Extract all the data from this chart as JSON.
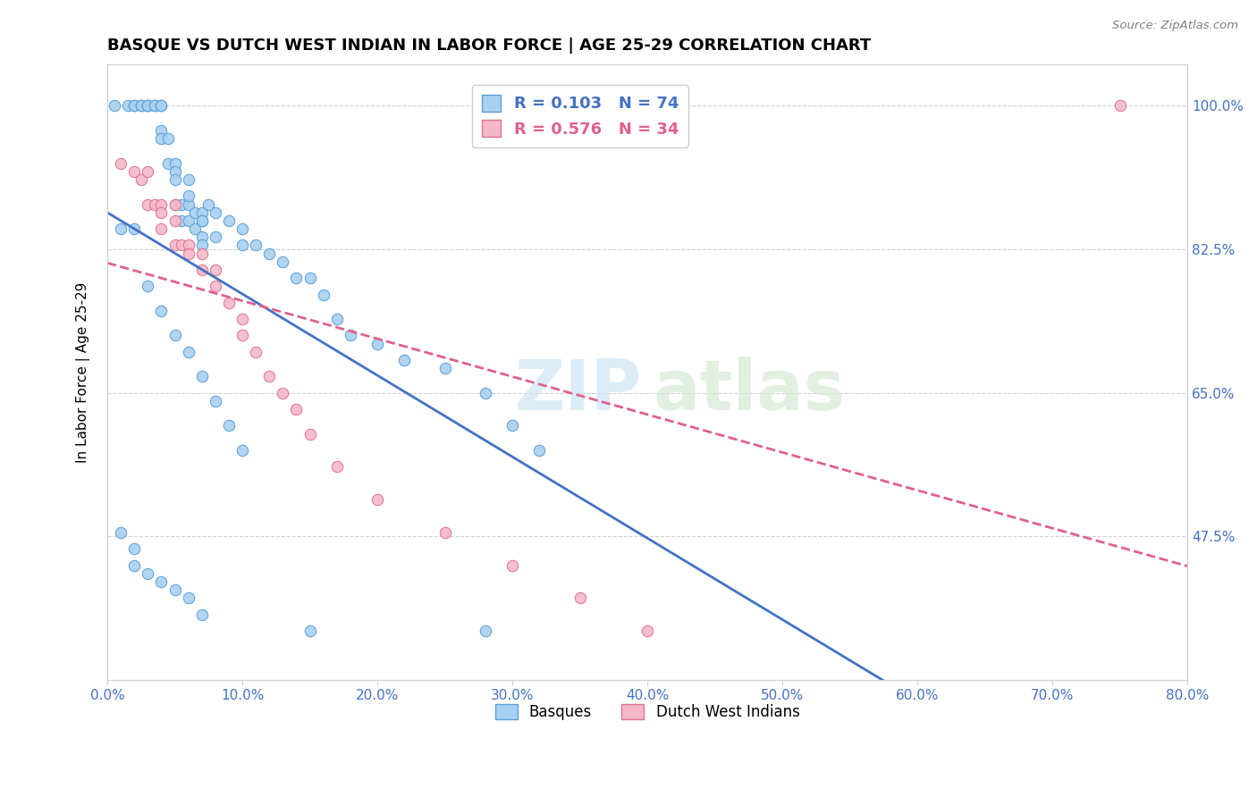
{
  "title": "BASQUE VS DUTCH WEST INDIAN IN LABOR FORCE | AGE 25-29 CORRELATION CHART",
  "source": "Source: ZipAtlas.com",
  "ylabel": "In Labor Force | Age 25-29",
  "ytick_labels": [
    "100.0%",
    "82.5%",
    "65.0%",
    "47.5%"
  ],
  "ytick_vals": [
    1.0,
    0.825,
    0.65,
    0.475
  ],
  "watermark_zip": "ZIP",
  "watermark_atlas": "atlas",
  "xmin": 0.0,
  "xmax": 0.8,
  "ymin": 0.3,
  "ymax": 1.05,
  "basque_R": "0.103",
  "basque_N": "74",
  "dutch_R": "0.576",
  "dutch_N": "34",
  "basque_color": "#a8d0f0",
  "dutch_color": "#f4b8c8",
  "basque_edge_color": "#5a9fd4",
  "dutch_edge_color": "#e07090",
  "basque_line_color": "#4472c4",
  "dutch_line_color": "#e06090",
  "title_color": "#000000",
  "ytick_color": "#4472c4",
  "xtick_color": "#4472c4",
  "legend_basque_color": "#4472c4",
  "legend_dutch_color": "#e06090",
  "grid_color": "#d0d0d0",
  "basque_x": [
    0.005,
    0.015,
    0.02,
    0.02,
    0.025,
    0.025,
    0.03,
    0.03,
    0.03,
    0.035,
    0.035,
    0.04,
    0.04,
    0.04,
    0.04,
    0.045,
    0.045,
    0.05,
    0.05,
    0.05,
    0.05,
    0.055,
    0.055,
    0.06,
    0.06,
    0.06,
    0.06,
    0.065,
    0.065,
    0.07,
    0.07,
    0.07,
    0.07,
    0.07,
    0.075,
    0.08,
    0.08,
    0.09,
    0.1,
    0.1,
    0.11,
    0.12,
    0.13,
    0.14,
    0.15,
    0.16,
    0.17,
    0.18,
    0.2,
    0.22,
    0.25,
    0.28,
    0.3,
    0.32,
    0.01,
    0.02,
    0.03,
    0.04,
    0.05,
    0.06,
    0.07,
    0.08,
    0.09,
    0.1,
    0.01,
    0.02,
    0.02,
    0.03,
    0.04,
    0.05,
    0.06,
    0.07,
    0.15,
    0.28
  ],
  "basque_y": [
    1.0,
    1.0,
    1.0,
    1.0,
    1.0,
    1.0,
    1.0,
    1.0,
    1.0,
    1.0,
    1.0,
    1.0,
    0.97,
    1.0,
    0.96,
    0.96,
    0.93,
    0.93,
    0.92,
    0.91,
    0.88,
    0.88,
    0.86,
    0.86,
    0.88,
    0.91,
    0.89,
    0.85,
    0.87,
    0.87,
    0.86,
    0.84,
    0.83,
    0.86,
    0.88,
    0.87,
    0.84,
    0.86,
    0.85,
    0.83,
    0.83,
    0.82,
    0.81,
    0.79,
    0.79,
    0.77,
    0.74,
    0.72,
    0.71,
    0.69,
    0.68,
    0.65,
    0.61,
    0.58,
    0.85,
    0.85,
    0.78,
    0.75,
    0.72,
    0.7,
    0.67,
    0.64,
    0.61,
    0.58,
    0.48,
    0.46,
    0.44,
    0.43,
    0.42,
    0.41,
    0.4,
    0.38,
    0.36,
    0.36
  ],
  "dutch_x": [
    0.01,
    0.02,
    0.025,
    0.03,
    0.03,
    0.035,
    0.04,
    0.04,
    0.04,
    0.05,
    0.05,
    0.05,
    0.055,
    0.06,
    0.06,
    0.07,
    0.07,
    0.08,
    0.08,
    0.09,
    0.1,
    0.1,
    0.11,
    0.12,
    0.13,
    0.14,
    0.15,
    0.17,
    0.2,
    0.25,
    0.3,
    0.35,
    0.4,
    0.75
  ],
  "dutch_y": [
    0.93,
    0.92,
    0.91,
    0.92,
    0.88,
    0.88,
    0.88,
    0.87,
    0.85,
    0.88,
    0.86,
    0.83,
    0.83,
    0.83,
    0.82,
    0.82,
    0.8,
    0.8,
    0.78,
    0.76,
    0.74,
    0.72,
    0.7,
    0.67,
    0.65,
    0.63,
    0.6,
    0.56,
    0.52,
    0.48,
    0.44,
    0.4,
    0.36,
    1.0
  ]
}
